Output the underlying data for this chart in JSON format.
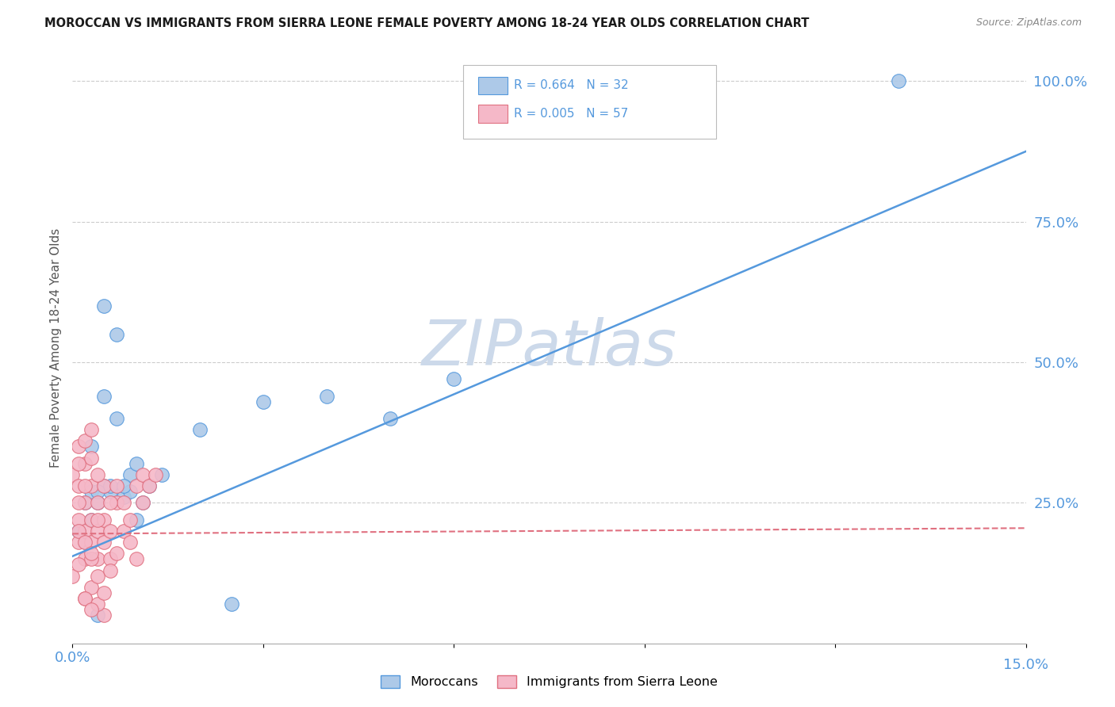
{
  "title": "MOROCCAN VS IMMIGRANTS FROM SIERRA LEONE FEMALE POVERTY AMONG 18-24 YEAR OLDS CORRELATION CHART",
  "source": "Source: ZipAtlas.com",
  "ylabel": "Female Poverty Among 18-24 Year Olds",
  "xlim": [
    0.0,
    0.15
  ],
  "ylim": [
    0.0,
    1.05
  ],
  "color_moroccan": "#adc9e8",
  "color_sierraleone": "#f5b8c8",
  "color_line_moroccan": "#5599dd",
  "color_line_sierraleone": "#e07080",
  "watermark": "ZIPatlas",
  "watermark_color": "#ccd9ea",
  "background_color": "#ffffff",
  "legend_R1": "0.664",
  "legend_N1": "32",
  "legend_R2": "0.005",
  "legend_N2": "57",
  "blue_line_x": [
    0.0,
    0.15
  ],
  "blue_line_y": [
    0.155,
    0.875
  ],
  "pink_line_x": [
    0.0,
    0.15
  ],
  "pink_line_y": [
    0.195,
    0.205
  ],
  "moroccan_x": [
    0.001,
    0.002,
    0.003,
    0.004,
    0.005,
    0.006,
    0.008,
    0.009,
    0.01,
    0.012,
    0.014,
    0.003,
    0.005,
    0.007,
    0.009,
    0.011,
    0.004,
    0.006,
    0.02,
    0.03,
    0.04,
    0.05,
    0.06,
    0.002,
    0.003,
    0.004,
    0.005,
    0.007,
    0.01,
    0.025,
    0.13,
    0.008
  ],
  "moroccan_y": [
    0.2,
    0.18,
    0.22,
    0.25,
    0.44,
    0.27,
    0.26,
    0.3,
    0.22,
    0.28,
    0.3,
    0.35,
    0.28,
    0.4,
    0.27,
    0.25,
    0.05,
    0.28,
    0.38,
    0.43,
    0.44,
    0.4,
    0.47,
    0.25,
    0.27,
    0.27,
    0.6,
    0.55,
    0.32,
    0.07,
    1.0,
    0.28
  ],
  "sierraleone_x": [
    0.0,
    0.001,
    0.001,
    0.001,
    0.002,
    0.002,
    0.002,
    0.003,
    0.003,
    0.003,
    0.004,
    0.004,
    0.004,
    0.005,
    0.005,
    0.005,
    0.006,
    0.006,
    0.007,
    0.007,
    0.008,
    0.008,
    0.009,
    0.009,
    0.01,
    0.01,
    0.011,
    0.011,
    0.012,
    0.013,
    0.001,
    0.002,
    0.003,
    0.004,
    0.002,
    0.003,
    0.004,
    0.005,
    0.003,
    0.004,
    0.005,
    0.006,
    0.006,
    0.007,
    0.001,
    0.002,
    0.001,
    0.002,
    0.003,
    0.004,
    0.0,
    0.001,
    0.002,
    0.003,
    0.001,
    0.002,
    0.003
  ],
  "sierraleone_y": [
    0.3,
    0.18,
    0.22,
    0.28,
    0.15,
    0.2,
    0.25,
    0.18,
    0.22,
    0.28,
    0.15,
    0.2,
    0.25,
    0.18,
    0.22,
    0.28,
    0.15,
    0.2,
    0.25,
    0.28,
    0.2,
    0.25,
    0.18,
    0.22,
    0.15,
    0.28,
    0.3,
    0.25,
    0.28,
    0.3,
    0.35,
    0.32,
    0.33,
    0.3,
    0.08,
    0.1,
    0.12,
    0.05,
    0.15,
    0.07,
    0.09,
    0.13,
    0.25,
    0.16,
    0.25,
    0.28,
    0.32,
    0.36,
    0.38,
    0.22,
    0.12,
    0.14,
    0.08,
    0.06,
    0.2,
    0.18,
    0.16
  ]
}
